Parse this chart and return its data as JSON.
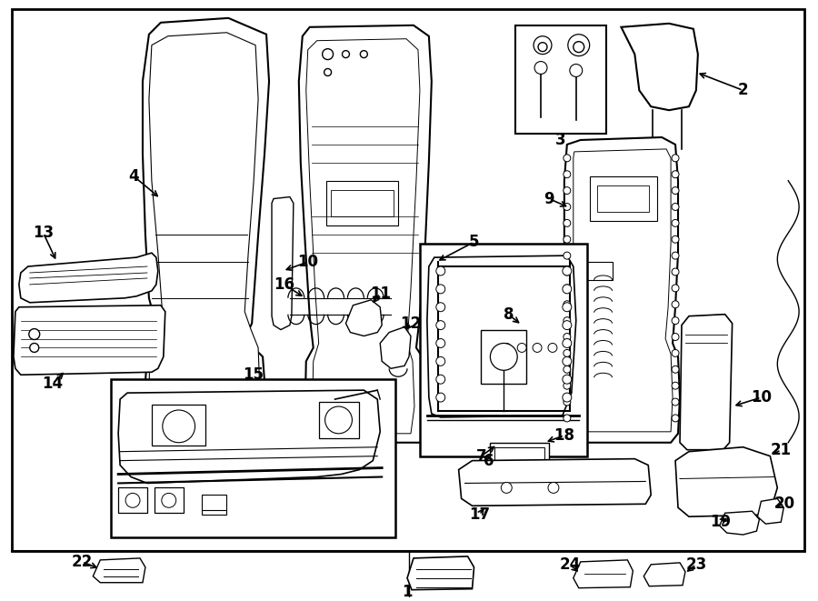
{
  "bg_color": "#ffffff",
  "line_color": "#000000",
  "label_color": "#000000",
  "figsize": [
    9.0,
    6.61
  ],
  "dpi": 100,
  "border": [
    10,
    10,
    878,
    600
  ],
  "label_fontsize": 12,
  "arrow_lw": 1.2
}
